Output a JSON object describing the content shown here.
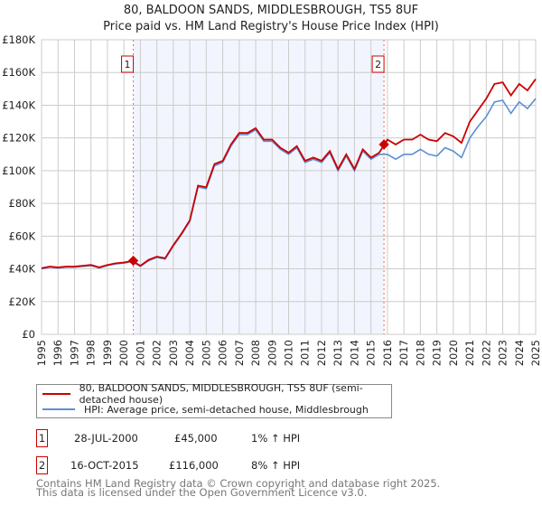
{
  "chart_data": {
    "type": "line",
    "title": "80, BALDOON SANDS, MIDDLESBROUGH, TS5 8UF",
    "subtitle": "Price paid vs. HM Land Registry's House Price Index (HPI)",
    "xlim": [
      1995,
      2025
    ],
    "ylim": [
      0,
      180000
    ],
    "yticks": [
      {
        "v": 0,
        "l": "£0"
      },
      {
        "v": 20000,
        "l": "£20K"
      },
      {
        "v": 40000,
        "l": "£40K"
      },
      {
        "v": 60000,
        "l": "£60K"
      },
      {
        "v": 80000,
        "l": "£80K"
      },
      {
        "v": 100000,
        "l": "£100K"
      },
      {
        "v": 120000,
        "l": "£120K"
      },
      {
        "v": 140000,
        "l": "£140K"
      },
      {
        "v": 160000,
        "l": "£160K"
      },
      {
        "v": 180000,
        "l": "£180K"
      }
    ],
    "xticks": [
      "1995",
      "1996",
      "1997",
      "1998",
      "1999",
      "2000",
      "2001",
      "2002",
      "2003",
      "2004",
      "2005",
      "2006",
      "2007",
      "2008",
      "2009",
      "2010",
      "2011",
      "2012",
      "2013",
      "2014",
      "2015",
      "2016",
      "2017",
      "2018",
      "2019",
      "2020",
      "2021",
      "2022",
      "2023",
      "2024",
      "2025"
    ],
    "x_start": 1995,
    "x_step": 0.5,
    "series": [
      {
        "name": "80, BALDOON SANDS, MIDDLESBROUGH, TS5 8UF (semi-detached house)",
        "color": "#cc0000",
        "values_k": [
          40.4,
          41.4,
          40.9,
          41.4,
          41.4,
          41.9,
          42.4,
          40.9,
          42.4,
          43.4,
          43.9,
          44.9,
          41.9,
          45.5,
          47.5,
          46.5,
          54.5,
          61.6,
          69.7,
          90.9,
          89.9,
          104,
          106,
          116,
          123,
          123,
          126,
          119,
          119,
          114,
          111,
          115,
          106,
          108,
          106,
          112,
          101,
          110,
          101,
          113,
          108,
          111,
          119,
          116,
          119,
          119,
          122,
          119,
          118,
          123,
          121,
          117,
          130,
          137,
          144,
          153,
          154,
          146,
          153,
          149,
          156
        ]
      },
      {
        "name": "HPI: Average price, semi-detached house, Middlesbrough",
        "color": "#5b8fd4",
        "values_k": [
          40,
          41,
          40.5,
          41,
          41,
          41.5,
          42,
          40.5,
          42,
          43,
          43.5,
          44.5,
          41.5,
          45,
          47,
          46,
          54,
          61,
          69,
          90,
          89,
          103,
          105,
          115,
          122,
          122,
          125,
          118,
          118,
          113,
          110,
          114,
          105,
          107,
          105,
          111,
          100,
          109,
          100,
          112,
          107,
          110,
          110,
          107,
          110,
          110,
          113,
          110,
          109,
          114,
          112,
          108,
          120,
          127,
          133,
          142,
          143,
          135,
          142,
          138,
          144
        ]
      }
    ],
    "transactions": [
      {
        "id": "1",
        "x": 2000.57,
        "date": "28-JUL-2000",
        "price": "£45,000",
        "value": 45000,
        "hpi": "1% ↑ HPI"
      },
      {
        "id": "2",
        "x": 2015.79,
        "date": "16-OCT-2015",
        "price": "£116,000",
        "value": 116000,
        "hpi": "8% ↑ HPI"
      }
    ],
    "shade_range": [
      2000.57,
      2015.79
    ]
  },
  "footer": {
    "line1": "Contains HM Land Registry data © Crown copyright and database right 2025.",
    "line2": "This data is licensed under the Open Government Licence v3.0."
  }
}
